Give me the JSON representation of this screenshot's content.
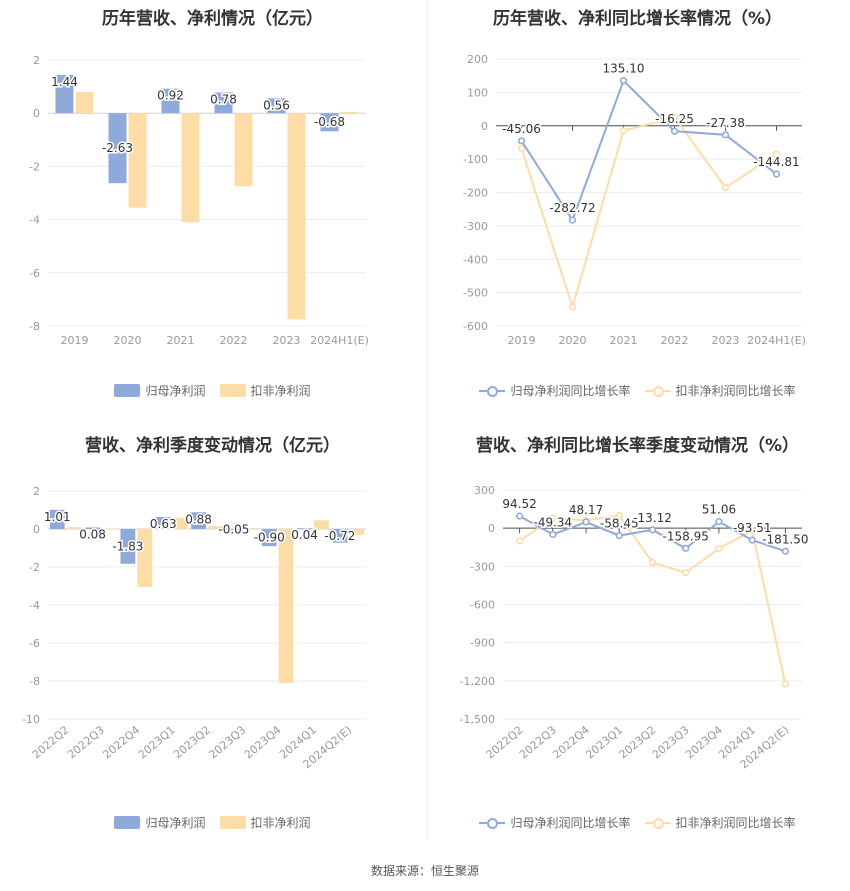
{
  "footer": "数据来源：恒生聚源",
  "colors": {
    "series1": "#8eaadb",
    "series2": "#fedca5",
    "axis": "#999999",
    "grid": "#e8ecf3",
    "label": "#333333"
  },
  "panels": [
    {
      "title": "历年营收、净利情况（亿元）",
      "legend": [
        "归母净利润",
        "扣非净利润"
      ],
      "chart_data": {
        "type": "bar",
        "categories": [
          "2019",
          "2020",
          "2021",
          "2022",
          "2023",
          "2024H1(E)"
        ],
        "series": [
          {
            "name": "归母净利润",
            "values": [
              1.44,
              -2.63,
              0.92,
              0.78,
              0.56,
              -0.68
            ],
            "labels": [
              "1.44",
              "-2.63",
              "0.92",
              "0.78",
              "0.56",
              "-0.68"
            ]
          },
          {
            "name": "扣非净利润",
            "values": [
              0.8,
              -3.55,
              -4.1,
              -2.75,
              -7.75,
              0.05
            ]
          }
        ],
        "ylim": [
          -8,
          2
        ],
        "yticks": [
          -8,
          -6,
          -4,
          -2,
          0,
          2
        ],
        "ytick_labels": [
          "-8",
          "-6",
          "-4",
          "-2",
          "0",
          "2"
        ],
        "xlabel": "",
        "ylabel": "",
        "grid": true,
        "legend": "bottom"
      }
    },
    {
      "title": "历年营收、净利同比增长率情况（%）",
      "legend": [
        "归母净利润同比增长率",
        "扣非净利润同比增长率"
      ],
      "chart_data": {
        "type": "line",
        "categories": [
          "2019",
          "2020",
          "2021",
          "2022",
          "2023",
          "2024H1(E)"
        ],
        "series": [
          {
            "name": "归母净利润同比增长率",
            "values": [
              -45.06,
              -282.72,
              135.1,
              -16.25,
              -27.38,
              -144.81
            ],
            "labels": [
              "-45.06",
              "-282.72",
              "135.10",
              "-16.25",
              "-27.38",
              "-144.81"
            ]
          },
          {
            "name": "扣非净利润同比增长率",
            "values": [
              -68,
              -543,
              -15,
              25,
              -185,
              -85
            ]
          }
        ],
        "ylim": [
          -600,
          200
        ],
        "yticks": [
          -600,
          -500,
          -400,
          -300,
          -200,
          -100,
          0,
          100,
          200
        ],
        "ytick_labels": [
          "-600",
          "-500",
          "-400",
          "-300",
          "-200",
          "-100",
          "0",
          "100",
          "200"
        ],
        "xlabel": "",
        "ylabel": "",
        "grid": true,
        "legend": "bottom"
      }
    },
    {
      "title": "营收、净利季度变动情况（亿元）",
      "legend": [
        "归母净利润",
        "扣非净利润"
      ],
      "chart_data": {
        "type": "bar",
        "categories": [
          "2022Q2",
          "2022Q3",
          "2022Q4",
          "2023Q1",
          "2023Q2",
          "2023Q3",
          "2023Q4",
          "2024Q1",
          "2024Q2(E)"
        ],
        "series": [
          {
            "name": "归母净利润",
            "values": [
              1.01,
              0.08,
              -1.83,
              0.63,
              0.88,
              -0.05,
              -0.9,
              0.04,
              -0.72
            ],
            "labels": [
              "1.01",
              "0.08",
              "-1.83",
              "0.63",
              "0.88",
              "-0.05",
              "-0.90",
              "0.04",
              "-0.72"
            ]
          },
          {
            "name": "扣非净利润",
            "values": [
              0.1,
              0.02,
              -3.05,
              0.6,
              0.15,
              0.05,
              -8.1,
              0.45,
              -0.3
            ]
          }
        ],
        "ylim": [
          -10,
          2
        ],
        "yticks": [
          -10,
          -8,
          -6,
          -4,
          -2,
          0,
          2
        ],
        "ytick_labels": [
          "-10",
          "-8",
          "-6",
          "-4",
          "-2",
          "0",
          "2"
        ],
        "xlabel": "",
        "ylabel": "",
        "grid": true,
        "legend": "bottom"
      }
    },
    {
      "title": "营收、净利同比增长率季度变动情况（%）",
      "legend": [
        "归母净利润同比增长率",
        "扣非净利润同比增长率"
      ],
      "chart_data": {
        "type": "line",
        "categories": [
          "2022Q2",
          "2022Q3",
          "2022Q4",
          "2023Q1",
          "2023Q2",
          "2023Q3",
          "2023Q4",
          "2024Q1",
          "2024Q2(E)"
        ],
        "series": [
          {
            "name": "归母净利润同比增长率",
            "values": [
              94.52,
              -49.34,
              48.17,
              -58.45,
              -13.12,
              -158.95,
              51.06,
              -93.51,
              -181.5
            ],
            "labels": [
              "94.52",
              "-49.34",
              "48.17",
              "-58.45",
              "-13.12",
              "-158.95",
              "51.06",
              "-93.51",
              "-181.50"
            ]
          },
          {
            "name": "扣非净利润同比增长率",
            "values": [
              -100,
              80,
              60,
              100,
              -270,
              -350,
              -160,
              -20,
              -1225
            ]
          }
        ],
        "ylim": [
          -1500,
          300
        ],
        "yticks": [
          -1500,
          -1200,
          -900,
          -600,
          -300,
          0,
          300
        ],
        "ytick_labels": [
          "-1,500",
          "-1,200",
          "-900",
          "-600",
          "-300",
          "0",
          "300"
        ],
        "xlabel": "",
        "ylabel": "",
        "grid": true,
        "legend": "bottom"
      }
    }
  ]
}
